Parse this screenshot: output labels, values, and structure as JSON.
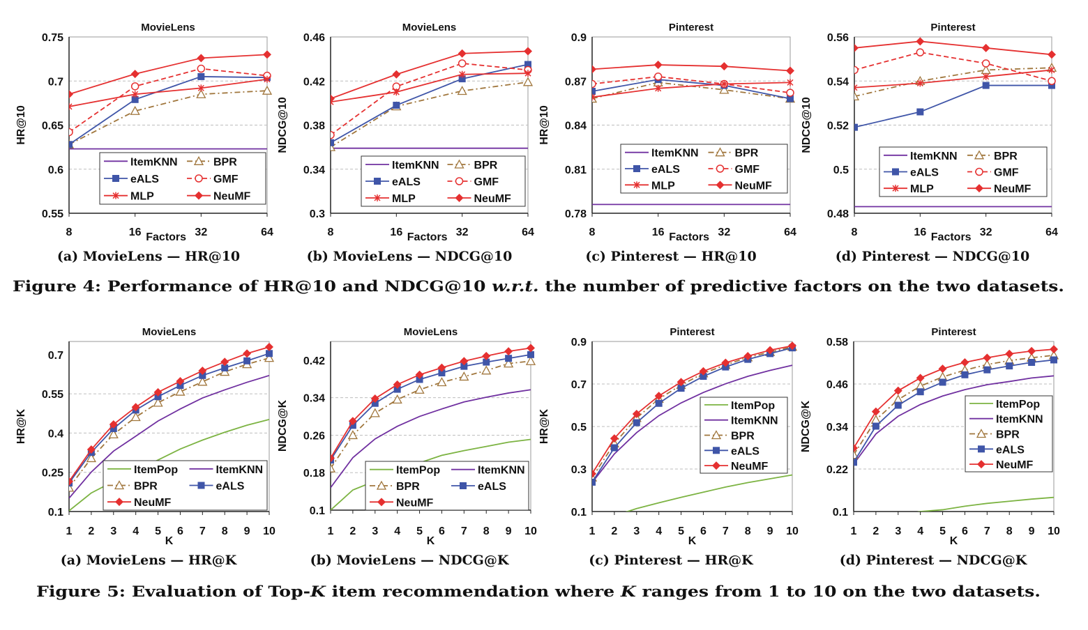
{
  "figure4": {
    "caption_parts": [
      "Figure 4:  Performance of HR@10 and NDCG@10 ",
      "w.r.t.",
      " the number of predictive factors on the two datasets."
    ]
  },
  "figure5": {
    "caption_parts": [
      "Figure 5:  Evaluation of Top-",
      "K",
      " item recommendation where ",
      "K",
      " ranges from 1 to 10 on the two datasets."
    ]
  },
  "styles": {
    "ItemPop": {
      "color": "#7cb342",
      "dash": "solid",
      "marker": "none"
    },
    "ItemKNN": {
      "color": "#7030a0",
      "dash": "solid",
      "marker": "none"
    },
    "BPR": {
      "color": "#a0763c",
      "dash": "dashdot",
      "marker": "triangle-open"
    },
    "eALS": {
      "color": "#3f55a8",
      "dash": "solid",
      "marker": "square"
    },
    "GMF": {
      "color": "#e53030",
      "dash": "dashed",
      "marker": "circle-open"
    },
    "MLP": {
      "color": "#e53030",
      "dash": "solid",
      "marker": "asterisk"
    },
    "NeuMF": {
      "color": "#e53030",
      "dash": "solid",
      "marker": "diamond"
    }
  },
  "chart_data": [
    {
      "type": "line",
      "title": "MovieLens",
      "subcaption": "(a) MovieLens — HR@10",
      "xlabel": "Factors",
      "ylabel": "HR@10",
      "x": [
        "8",
        "16",
        "32",
        "64"
      ],
      "ylim": [
        0.55,
        0.75
      ],
      "yticks": [
        "0.55",
        "0.6",
        "0.65",
        "0.7",
        "0.75"
      ],
      "grid": true,
      "legend": "bottom-right",
      "series": [
        {
          "name": "ItemKNN",
          "values": [
            0.623,
            0.623,
            0.623,
            0.623
          ]
        },
        {
          "name": "BPR",
          "values": [
            0.628,
            0.666,
            0.685,
            0.689
          ]
        },
        {
          "name": "eALS",
          "values": [
            0.628,
            0.679,
            0.705,
            0.704
          ]
        },
        {
          "name": "GMF",
          "values": [
            0.642,
            0.694,
            0.714,
            0.706
          ]
        },
        {
          "name": "MLP",
          "values": [
            0.671,
            0.685,
            0.692,
            0.702
          ]
        },
        {
          "name": "NeuMF",
          "values": [
            0.685,
            0.708,
            0.726,
            0.73
          ]
        }
      ]
    },
    {
      "type": "line",
      "title": "MovieLens",
      "subcaption": "(b) MovieLens — NDCG@10",
      "xlabel": "Factors",
      "ylabel": "NDCG@10",
      "x": [
        "8",
        "16",
        "32",
        "64"
      ],
      "ylim": [
        0.3,
        0.46
      ],
      "yticks": [
        "0.3",
        "0.34",
        "0.38",
        "0.42",
        "0.46"
      ],
      "grid": true,
      "legend": "bottom-right",
      "series": [
        {
          "name": "ItemKNN",
          "values": [
            0.359,
            0.359,
            0.359,
            0.359
          ]
        },
        {
          "name": "BPR",
          "values": [
            0.36,
            0.397,
            0.411,
            0.419
          ]
        },
        {
          "name": "eALS",
          "values": [
            0.364,
            0.398,
            0.422,
            0.435
          ]
        },
        {
          "name": "GMF",
          "values": [
            0.371,
            0.415,
            0.436,
            0.43
          ]
        },
        {
          "name": "MLP",
          "values": [
            0.401,
            0.41,
            0.426,
            0.427
          ]
        },
        {
          "name": "NeuMF",
          "values": [
            0.404,
            0.426,
            0.445,
            0.447
          ]
        }
      ]
    },
    {
      "type": "line",
      "title": "Pinterest",
      "subcaption": "(c) Pinterest — HR@10",
      "xlabel": "Factors",
      "ylabel": "HR@10",
      "x": [
        "8",
        "16",
        "32",
        "64"
      ],
      "ylim": [
        0.78,
        0.9
      ],
      "yticks": [
        "0.78",
        "0.81",
        "0.84",
        "0.87",
        "0.9"
      ],
      "grid": true,
      "legend": "bottom-right",
      "series": [
        {
          "name": "ItemKNN",
          "values": [
            0.786,
            0.786,
            0.786,
            0.786
          ]
        },
        {
          "name": "BPR",
          "values": [
            0.858,
            0.869,
            0.864,
            0.858
          ]
        },
        {
          "name": "eALS",
          "values": [
            0.863,
            0.871,
            0.867,
            0.858
          ]
        },
        {
          "name": "GMF",
          "values": [
            0.868,
            0.873,
            0.868,
            0.862
          ]
        },
        {
          "name": "MLP",
          "values": [
            0.859,
            0.865,
            0.868,
            0.869
          ]
        },
        {
          "name": "NeuMF",
          "values": [
            0.878,
            0.881,
            0.88,
            0.877
          ]
        }
      ]
    },
    {
      "type": "line",
      "title": "Pinterest",
      "subcaption": "(d) Pinterest — NDCG@10",
      "xlabel": "Factors",
      "ylabel": "NDCG@10",
      "x": [
        "8",
        "16",
        "32",
        "64"
      ],
      "ylim": [
        0.48,
        0.56
      ],
      "yticks": [
        "0.48",
        "0.5",
        "0.52",
        "0.54",
        "0.56"
      ],
      "grid": true,
      "legend": "bottom-right",
      "series": [
        {
          "name": "ItemKNN",
          "values": [
            0.483,
            0.483,
            0.483,
            0.483
          ]
        },
        {
          "name": "BPR",
          "values": [
            0.533,
            0.54,
            0.545,
            0.546
          ]
        },
        {
          "name": "eALS",
          "values": [
            0.519,
            0.526,
            0.538,
            0.538
          ]
        },
        {
          "name": "GMF",
          "values": [
            0.545,
            0.553,
            0.548,
            0.54
          ]
        },
        {
          "name": "MLP",
          "values": [
            0.537,
            0.539,
            0.542,
            0.545
          ]
        },
        {
          "name": "NeuMF",
          "values": [
            0.555,
            0.558,
            0.555,
            0.552
          ]
        }
      ]
    },
    {
      "type": "line",
      "title": "MovieLens",
      "subcaption": "(a) MovieLens — HR@K",
      "xlabel": "K",
      "ylabel": "HR@K",
      "x": [
        "1",
        "2",
        "3",
        "4",
        "5",
        "6",
        "7",
        "8",
        "9",
        "10"
      ],
      "ylim": [
        0.1,
        0.75
      ],
      "yticks": [
        "0.1",
        "0.25",
        "0.4",
        "0.55",
        "0.7"
      ],
      "grid": true,
      "legend": "bottom-right",
      "series": [
        {
          "name": "ItemPop",
          "values": [
            0.103,
            0.171,
            0.215,
            0.258,
            0.297,
            0.339,
            0.373,
            0.403,
            0.43,
            0.452
          ]
        },
        {
          "name": "ItemKNN",
          "values": [
            0.151,
            0.251,
            0.331,
            0.388,
            0.446,
            0.492,
            0.534,
            0.565,
            0.594,
            0.62
          ]
        },
        {
          "name": "BPR",
          "values": [
            0.191,
            0.304,
            0.395,
            0.461,
            0.516,
            0.558,
            0.596,
            0.634,
            0.663,
            0.687
          ]
        },
        {
          "name": "eALS",
          "values": [
            0.209,
            0.326,
            0.417,
            0.488,
            0.539,
            0.582,
            0.62,
            0.649,
            0.676,
            0.704
          ]
        },
        {
          "name": "NeuMF",
          "values": [
            0.215,
            0.337,
            0.433,
            0.499,
            0.556,
            0.598,
            0.638,
            0.672,
            0.704,
            0.729
          ]
        }
      ]
    },
    {
      "type": "line",
      "title": "MovieLens",
      "subcaption": "(b) MovieLens — NDCG@K",
      "xlabel": "K",
      "ylabel": "NDCG@K",
      "x": [
        "1",
        "2",
        "3",
        "4",
        "5",
        "6",
        "7",
        "8",
        "9",
        "10"
      ],
      "ylim": [
        0.1,
        0.46
      ],
      "yticks": [
        "0.1",
        "0.18",
        "0.26",
        "0.34",
        "0.42"
      ],
      "grid": true,
      "legend": "bottom-right",
      "series": [
        {
          "name": "ItemPop",
          "values": [
            0.1,
            0.143,
            0.162,
            0.18,
            0.201,
            0.217,
            0.227,
            0.236,
            0.245,
            0.251
          ]
        },
        {
          "name": "ItemKNN",
          "values": [
            0.148,
            0.212,
            0.252,
            0.279,
            0.3,
            0.316,
            0.331,
            0.341,
            0.35,
            0.357
          ]
        },
        {
          "name": "BPR",
          "values": [
            0.189,
            0.26,
            0.307,
            0.336,
            0.357,
            0.373,
            0.385,
            0.398,
            0.413,
            0.418
          ]
        },
        {
          "name": "eALS",
          "values": [
            0.207,
            0.281,
            0.328,
            0.358,
            0.379,
            0.393,
            0.407,
            0.416,
            0.424,
            0.432
          ]
        },
        {
          "name": "NeuMF",
          "values": [
            0.211,
            0.29,
            0.338,
            0.368,
            0.389,
            0.404,
            0.418,
            0.429,
            0.439,
            0.446
          ]
        }
      ]
    },
    {
      "type": "line",
      "title": "Pinterest",
      "subcaption": "(c) Pinterest — HR@K",
      "xlabel": "K",
      "ylabel": "HR@K",
      "x": [
        "1",
        "2",
        "3",
        "4",
        "5",
        "6",
        "7",
        "8",
        "9",
        "10"
      ],
      "ylim": [
        0.1,
        0.9
      ],
      "yticks": [
        "0.1",
        "0.3",
        "0.5",
        "0.7",
        "0.9"
      ],
      "grid": true,
      "legend": "right",
      "series": [
        {
          "name": "ItemPop",
          "values": [
            0.04,
            0.08,
            0.114,
            0.141,
            0.167,
            0.191,
            0.215,
            0.236,
            0.254,
            0.272
          ]
        },
        {
          "name": "ItemKNN",
          "values": [
            0.236,
            0.371,
            0.471,
            0.551,
            0.611,
            0.66,
            0.701,
            0.736,
            0.764,
            0.788
          ]
        },
        {
          "name": "BPR",
          "values": [
            0.26,
            0.42,
            0.54,
            0.63,
            0.695,
            0.75,
            0.79,
            0.825,
            0.85,
            0.875
          ]
        },
        {
          "name": "eALS",
          "values": [
            0.238,
            0.4,
            0.518,
            0.609,
            0.68,
            0.736,
            0.78,
            0.816,
            0.843,
            0.87
          ]
        },
        {
          "name": "NeuMF",
          "values": [
            0.278,
            0.444,
            0.559,
            0.644,
            0.709,
            0.76,
            0.8,
            0.831,
            0.859,
            0.88
          ]
        }
      ]
    },
    {
      "type": "line",
      "title": "Pinterest",
      "subcaption": "(d) Pinterest — NDCG@K",
      "xlabel": "K",
      "ylabel": "NDCG@K",
      "x": [
        "1",
        "2",
        "3",
        "4",
        "5",
        "6",
        "7",
        "8",
        "9",
        "10"
      ],
      "ylim": [
        0.1,
        0.58
      ],
      "yticks": [
        "0.1",
        "0.22",
        "0.34",
        "0.46",
        "0.58"
      ],
      "grid": true,
      "legend": "right",
      "series": [
        {
          "name": "ItemPop",
          "values": [
            0.06,
            0.075,
            0.088,
            0.1,
            0.105,
            0.115,
            0.123,
            0.129,
            0.135,
            0.14
          ]
        },
        {
          "name": "ItemKNN",
          "values": [
            0.234,
            0.319,
            0.369,
            0.402,
            0.426,
            0.444,
            0.458,
            0.467,
            0.477,
            0.483
          ]
        },
        {
          "name": "BPR",
          "values": [
            0.26,
            0.359,
            0.416,
            0.454,
            0.48,
            0.499,
            0.515,
            0.526,
            0.534,
            0.541
          ]
        },
        {
          "name": "eALS",
          "values": [
            0.239,
            0.341,
            0.4,
            0.438,
            0.465,
            0.486,
            0.5,
            0.511,
            0.521,
            0.528
          ]
        },
        {
          "name": "NeuMF",
          "values": [
            0.279,
            0.382,
            0.441,
            0.477,
            0.503,
            0.521,
            0.534,
            0.545,
            0.553,
            0.558
          ]
        }
      ]
    }
  ]
}
